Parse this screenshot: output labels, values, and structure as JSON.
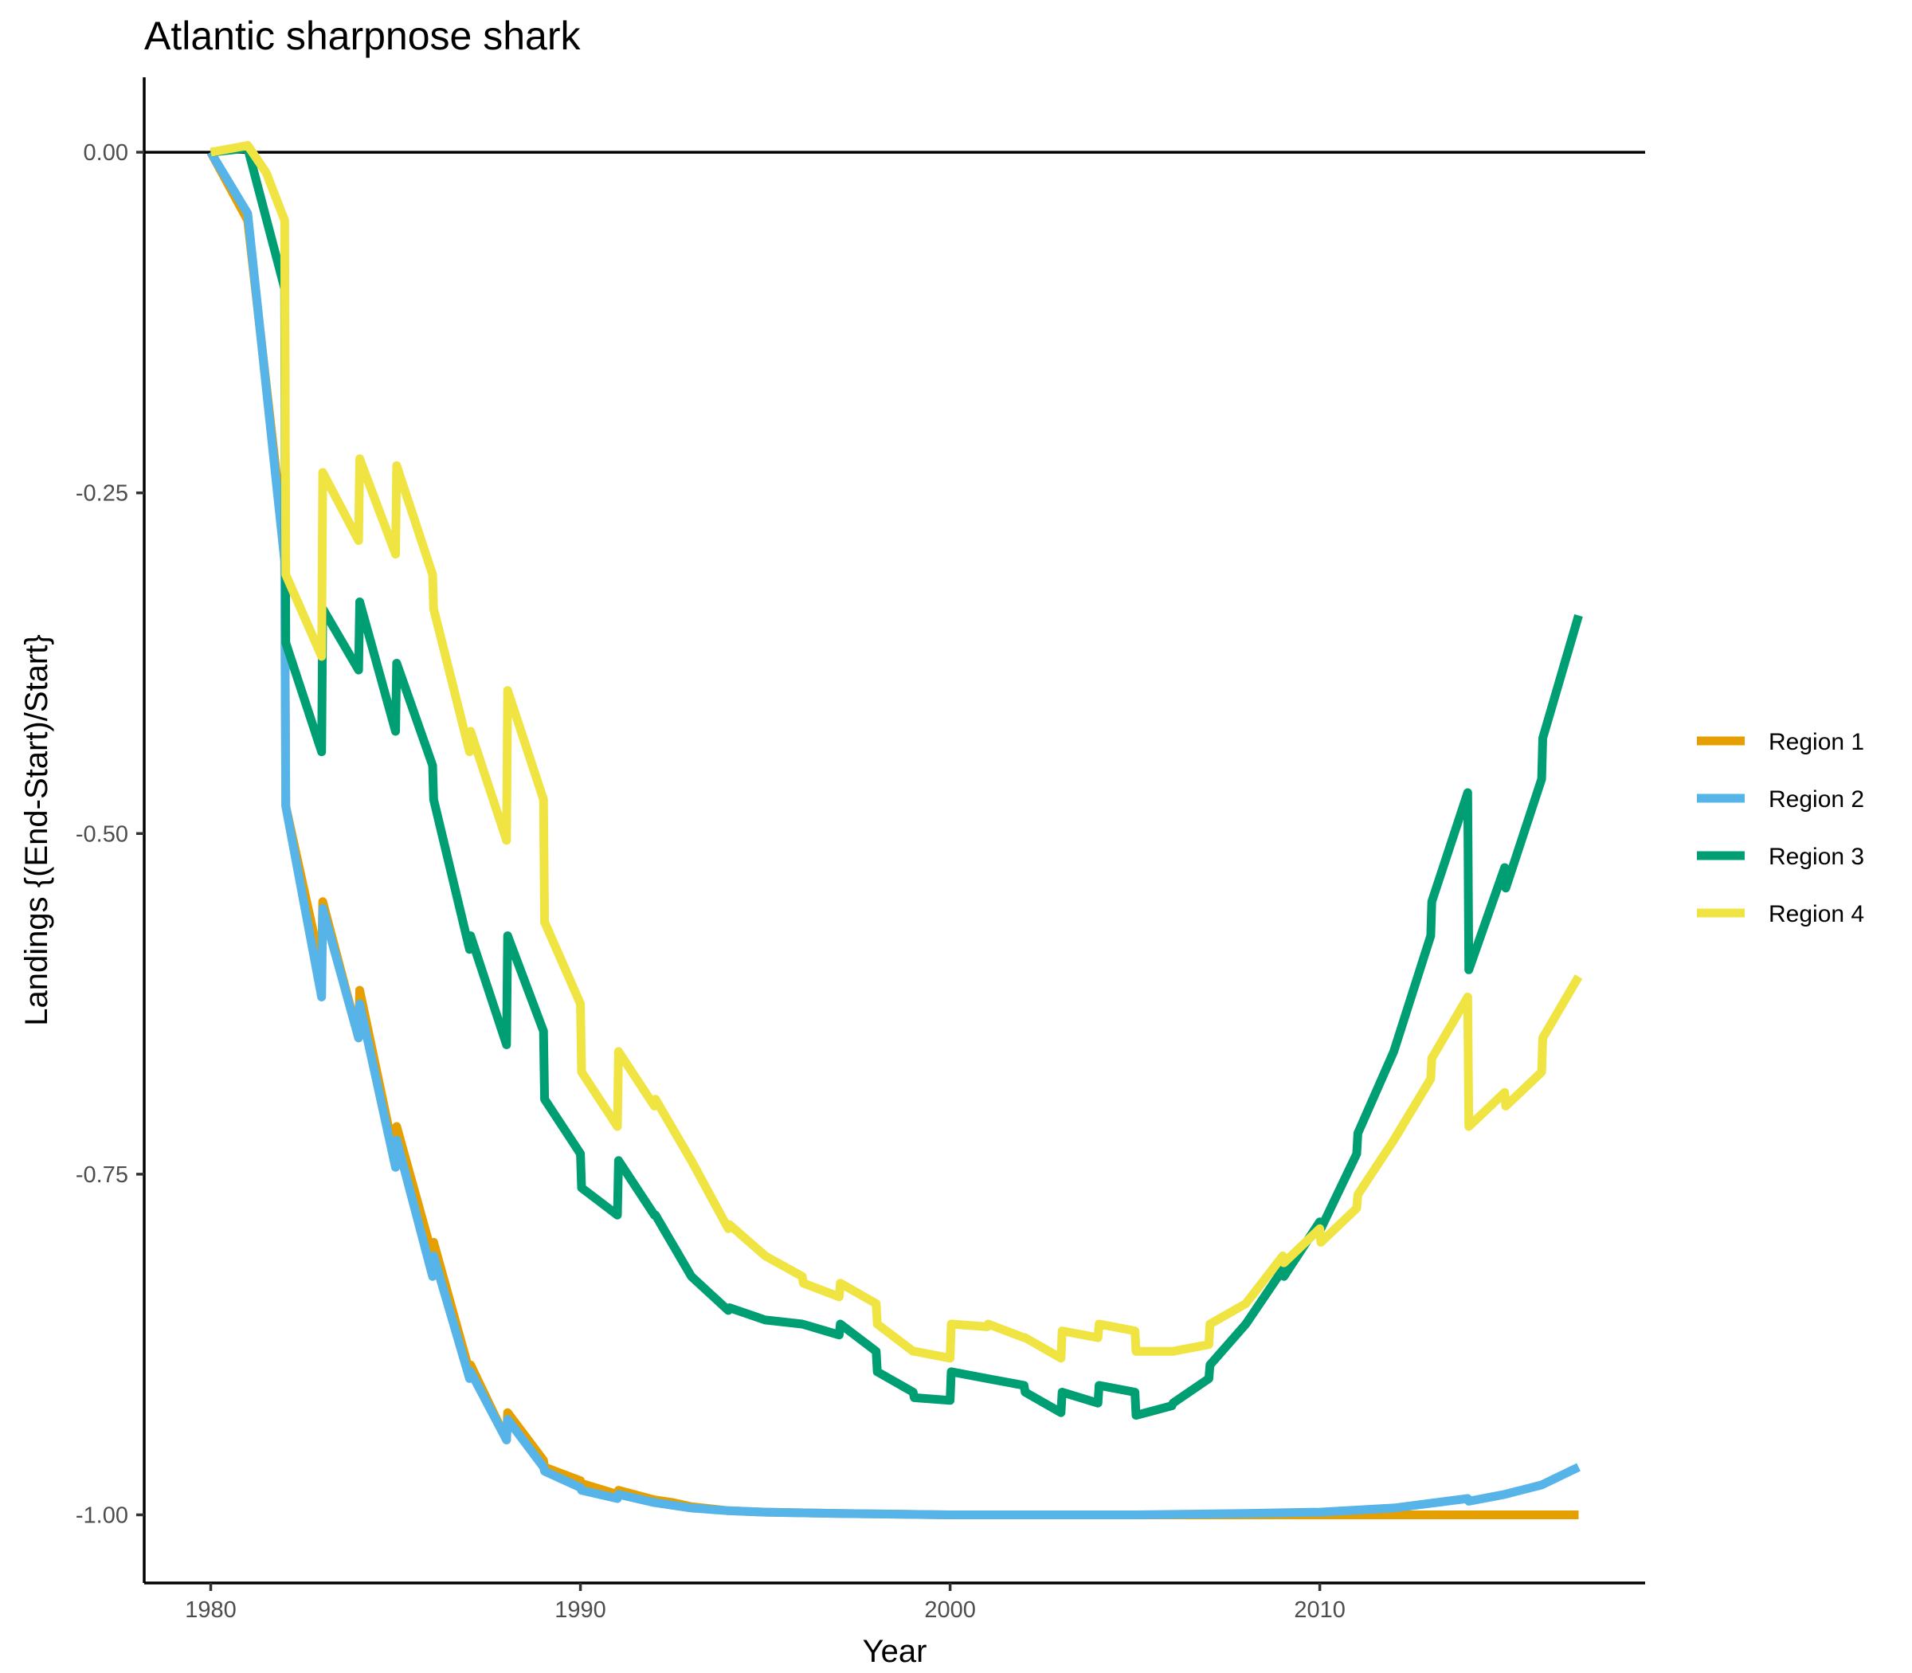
{
  "chart_data": {
    "type": "line",
    "title": "Atlantic sharpnose shark",
    "xlabel": "Year",
    "ylabel": "Landings {(End-Start)/Start}",
    "xlim": [
      1978.2,
      2018.8
    ],
    "ylim": [
      -1.05,
      0.055
    ],
    "x_ticks": [
      1980,
      1990,
      2000,
      2010
    ],
    "x_tick_labels": [
      "1980",
      "1990",
      "2000",
      "2010"
    ],
    "y_ticks": [
      0,
      -0.25,
      -0.5,
      -0.75,
      -1
    ],
    "y_tick_labels": [
      "0.00",
      "-0.25",
      "-0.50",
      "-0.75",
      "-1.00"
    ],
    "reference_line": 0,
    "grid": false,
    "legend_position": "right",
    "series": [
      {
        "name": "Region 1",
        "color": "#E69F00",
        "x": [
          1980,
          1981,
          1982,
          1982.03,
          1983,
          1983.03,
          1984,
          1984.03,
          1985,
          1985.03,
          1986,
          1986.03,
          1987,
          1987.03,
          1988,
          1988.03,
          1989,
          1989.03,
          1990,
          1990.03,
          1991,
          1991.03,
          1992,
          1992.5,
          1993,
          1994,
          1995,
          1997,
          2000,
          2005,
          2010,
          2017
        ],
        "y": [
          0,
          -0.05,
          -0.29,
          -0.48,
          -0.6,
          -0.55,
          -0.65,
          -0.615,
          -0.74,
          -0.715,
          -0.81,
          -0.8,
          -0.895,
          -0.89,
          -0.945,
          -0.925,
          -0.96,
          -0.965,
          -0.975,
          -0.977,
          -0.985,
          -0.982,
          -0.989,
          -0.991,
          -0.994,
          -0.997,
          -0.998,
          -0.999,
          -1,
          -1,
          -1,
          -1
        ]
      },
      {
        "name": "Region 2",
        "color": "#56B4E9",
        "x": [
          1980,
          1981,
          1982,
          1982.03,
          1983,
          1983.03,
          1984,
          1984.03,
          1985,
          1985.03,
          1986,
          1986.03,
          1987,
          1987.03,
          1988,
          1988.03,
          1989,
          1989.03,
          1990,
          1990.03,
          1991,
          1991.03,
          1992,
          1993,
          1994,
          1995,
          1997,
          2000,
          2005,
          2008,
          2010,
          2012,
          2014,
          2014.03,
          2015,
          2016,
          2017
        ],
        "y": [
          0,
          -0.045,
          -0.3,
          -0.48,
          -0.62,
          -0.555,
          -0.65,
          -0.625,
          -0.745,
          -0.725,
          -0.825,
          -0.81,
          -0.9,
          -0.895,
          -0.945,
          -0.93,
          -0.965,
          -0.968,
          -0.98,
          -0.982,
          -0.988,
          -0.985,
          -0.991,
          -0.995,
          -0.997,
          -0.998,
          -0.999,
          -1,
          -1,
          -0.999,
          -0.998,
          -0.995,
          -0.988,
          -0.99,
          -0.985,
          -0.978,
          -0.965
        ]
      },
      {
        "name": "Region 3",
        "color": "#009E73",
        "x": [
          1980,
          1981,
          1982,
          1982.03,
          1983,
          1983.03,
          1984,
          1984.03,
          1985,
          1985.03,
          1986,
          1986.03,
          1987,
          1987.03,
          1988,
          1988.03,
          1989,
          1989.03,
          1990,
          1990.03,
          1991,
          1991.03,
          1992,
          1992.03,
          1993,
          1994,
          1994.03,
          1995,
          1996,
          1997,
          1997.03,
          1998,
          1998.03,
          1999,
          1999.03,
          2000,
          2000.03,
          2001,
          2002,
          2002.03,
          2003,
          2003.03,
          2004,
          2004.03,
          2005,
          2005.03,
          2006,
          2006.03,
          2007,
          2007.03,
          2008,
          2009,
          2009.03,
          2010,
          2010.03,
          2011,
          2011.03,
          2012,
          2013,
          2013.03,
          2014,
          2014.03,
          2015,
          2015.03,
          2016,
          2016.03,
          2017
        ],
        "y": [
          0,
          0.003,
          -0.1,
          -0.36,
          -0.44,
          -0.335,
          -0.38,
          -0.33,
          -0.425,
          -0.375,
          -0.45,
          -0.475,
          -0.585,
          -0.575,
          -0.655,
          -0.575,
          -0.645,
          -0.695,
          -0.735,
          -0.76,
          -0.78,
          -0.74,
          -0.78,
          -0.78,
          -0.825,
          -0.85,
          -0.848,
          -0.857,
          -0.86,
          -0.868,
          -0.86,
          -0.88,
          -0.895,
          -0.91,
          -0.914,
          -0.916,
          -0.895,
          -0.9,
          -0.905,
          -0.91,
          -0.925,
          -0.91,
          -0.918,
          -0.905,
          -0.91,
          -0.927,
          -0.92,
          -0.918,
          -0.9,
          -0.89,
          -0.86,
          -0.82,
          -0.825,
          -0.785,
          -0.79,
          -0.735,
          -0.72,
          -0.66,
          -0.575,
          -0.55,
          -0.47,
          -0.6,
          -0.525,
          -0.54,
          -0.46,
          -0.43,
          -0.34
        ]
      },
      {
        "name": "Region 4",
        "color": "#F0E442",
        "x": [
          1980,
          1981,
          1981.5,
          1982,
          1982.03,
          1983,
          1983.03,
          1984,
          1984.03,
          1985,
          1985.03,
          1986,
          1986.03,
          1987,
          1987.03,
          1988,
          1988.03,
          1989,
          1989.03,
          1990,
          1990.03,
          1991,
          1991.03,
          1992,
          1992.03,
          1993,
          1994,
          1994.03,
          1995,
          1996,
          1996.03,
          1997,
          1997.03,
          1998,
          1998.03,
          1999,
          1999.03,
          2000,
          2000.03,
          2001,
          2001.03,
          2002,
          2002.03,
          2003,
          2003.03,
          2004,
          2004.03,
          2005,
          2005.03,
          2006,
          2006.03,
          2007,
          2007.03,
          2008,
          2009,
          2009.03,
          2010,
          2010.03,
          2011,
          2011.03,
          2012,
          2013,
          2013.03,
          2014,
          2014.03,
          2015,
          2015.03,
          2016,
          2016.03,
          2017
        ],
        "y": [
          0,
          0.005,
          -0.015,
          -0.05,
          -0.31,
          -0.37,
          -0.235,
          -0.285,
          -0.225,
          -0.295,
          -0.23,
          -0.31,
          -0.335,
          -0.44,
          -0.425,
          -0.505,
          -0.395,
          -0.475,
          -0.565,
          -0.625,
          -0.675,
          -0.715,
          -0.66,
          -0.7,
          -0.695,
          -0.74,
          -0.79,
          -0.787,
          -0.81,
          -0.825,
          -0.83,
          -0.84,
          -0.83,
          -0.845,
          -0.86,
          -0.88,
          -0.88,
          -0.885,
          -0.86,
          -0.862,
          -0.86,
          -0.87,
          -0.87,
          -0.885,
          -0.865,
          -0.87,
          -0.86,
          -0.865,
          -0.88,
          -0.88,
          -0.88,
          -0.875,
          -0.86,
          -0.845,
          -0.81,
          -0.815,
          -0.79,
          -0.8,
          -0.775,
          -0.765,
          -0.725,
          -0.68,
          -0.665,
          -0.62,
          -0.715,
          -0.69,
          -0.7,
          -0.675,
          -0.65,
          -0.605
        ]
      }
    ]
  }
}
